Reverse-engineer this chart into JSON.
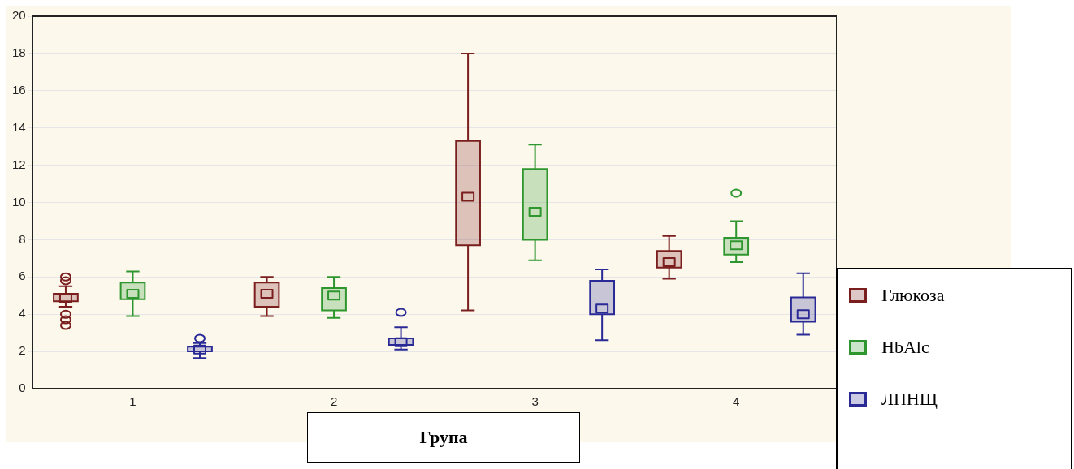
{
  "chart_data": {
    "type": "box",
    "xlabel": "Група",
    "categories": [
      "1",
      "2",
      "3",
      "4"
    ],
    "series": [
      {
        "name": "Глюкоза",
        "color": "#7a1e1e",
        "boxes": [
          {
            "low": 4.4,
            "q1": 4.7,
            "median": 4.85,
            "q3": 5.1,
            "high": 5.5,
            "outliers": [
              6.0,
              5.8,
              4.0,
              3.7,
              3.4
            ]
          },
          {
            "low": 3.9,
            "q1": 4.4,
            "median": 5.1,
            "q3": 5.7,
            "high": 6.0
          },
          {
            "low": 4.2,
            "q1": 7.7,
            "median": 10.3,
            "q3": 13.3,
            "high": 18.0
          },
          {
            "low": 5.9,
            "q1": 6.5,
            "median": 6.8,
            "q3": 7.4,
            "high": 8.2
          }
        ]
      },
      {
        "name": "HbAlc",
        "color": "#2e962e",
        "boxes": [
          {
            "low": 3.9,
            "q1": 4.8,
            "median": 5.1,
            "q3": 5.7,
            "high": 6.3
          },
          {
            "low": 3.8,
            "q1": 4.2,
            "median": 5.0,
            "q3": 5.4,
            "high": 6.0
          },
          {
            "low": 6.9,
            "q1": 8.0,
            "median": 9.5,
            "q3": 11.8,
            "high": 13.1
          },
          {
            "low": 6.8,
            "q1": 7.2,
            "median": 7.7,
            "q3": 8.1,
            "high": 9.0,
            "outliers": [
              10.5
            ]
          }
        ]
      },
      {
        "name": "ЛПНЩ",
        "color": "#2a2a96",
        "boxes": [
          {
            "low": 1.65,
            "q1": 2.0,
            "median": 2.1,
            "q3": 2.25,
            "high": 2.45,
            "outliers": [
              2.7
            ]
          },
          {
            "low": 2.1,
            "q1": 2.35,
            "median": 2.5,
            "q3": 2.7,
            "high": 3.3,
            "outliers": [
              4.1
            ]
          },
          {
            "low": 2.6,
            "q1": 4.0,
            "median": 4.3,
            "q3": 5.8,
            "high": 6.4
          },
          {
            "low": 2.9,
            "q1": 3.6,
            "median": 4.0,
            "q3": 4.9,
            "high": 6.2
          }
        ]
      }
    ],
    "ylim": [
      0,
      20
    ],
    "yticks": [
      0,
      2,
      4,
      6,
      8,
      10,
      12,
      14,
      16,
      18,
      20
    ],
    "grid": "y",
    "legend": "right"
  }
}
